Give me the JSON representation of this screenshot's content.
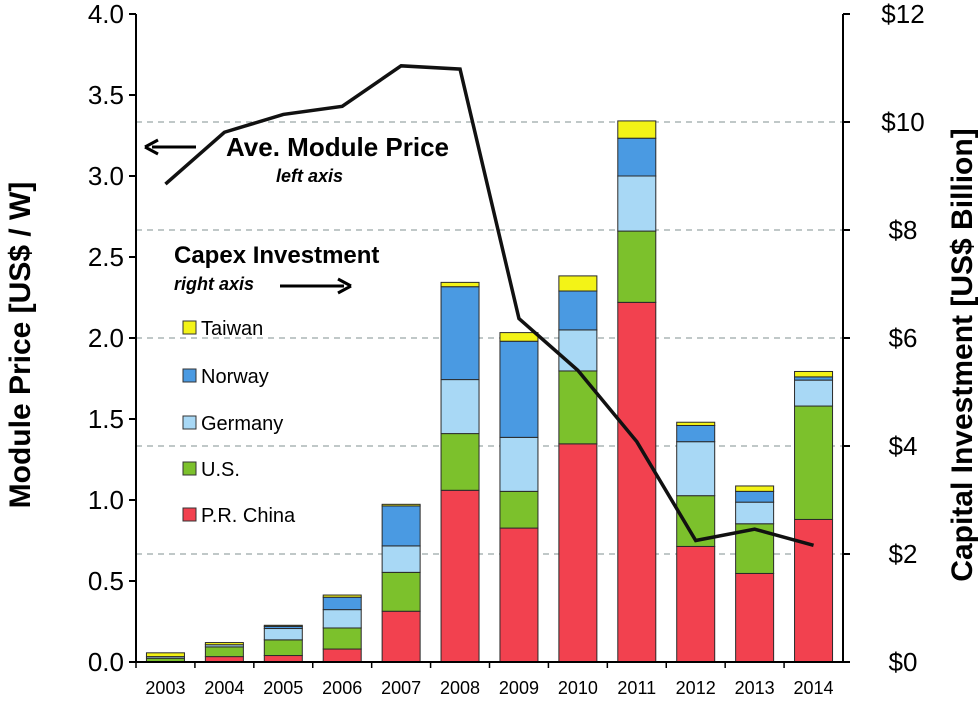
{
  "chart_data": {
    "type": "bar",
    "categories": [
      "2003",
      "2004",
      "2005",
      "2006",
      "2007",
      "2008",
      "2009",
      "2010",
      "2011",
      "2012",
      "2013",
      "2014"
    ],
    "series": [
      {
        "name": "P.R. China",
        "color": "#f2414f",
        "values": [
          0.0,
          0.1,
          0.12,
          0.24,
          0.94,
          3.18,
          2.48,
          4.04,
          6.66,
          2.14,
          1.64,
          2.64
        ]
      },
      {
        "name": "U.S.",
        "color": "#7cc12c",
        "values": [
          0.07,
          0.18,
          0.29,
          0.39,
          0.72,
          1.05,
          0.68,
          1.35,
          1.32,
          0.94,
          0.92,
          2.1
        ]
      },
      {
        "name": "Germany",
        "color": "#a8d8f5",
        "values": [
          0.03,
          0.04,
          0.21,
          0.34,
          0.49,
          1.0,
          1.0,
          0.76,
          1.02,
          1.0,
          0.4,
          0.48
        ]
      },
      {
        "name": "Norway",
        "color": "#4a9ae2",
        "values": [
          0.0,
          0.0,
          0.04,
          0.23,
          0.74,
          1.72,
          1.78,
          0.72,
          0.7,
          0.3,
          0.2,
          0.06
        ]
      },
      {
        "name": "Taiwan",
        "color": "#f3f317",
        "values": [
          0.07,
          0.04,
          0.02,
          0.04,
          0.03,
          0.08,
          0.16,
          0.28,
          0.32,
          0.06,
          0.1,
          0.1
        ]
      }
    ],
    "line": {
      "name": "Ave. Module Price",
      "axis": "left",
      "values": [
        2.95,
        3.27,
        3.38,
        3.43,
        3.68,
        3.66,
        2.12,
        1.8,
        1.36,
        0.75,
        0.82,
        0.72
      ]
    },
    "left_axis": {
      "label": "Module Price [US$ / W]",
      "min": 0,
      "max": 4,
      "ticks": [
        "0.0",
        "0.5",
        "1.0",
        "1.5",
        "2.0",
        "2.5",
        "3.0",
        "3.5",
        "4.0"
      ]
    },
    "right_axis": {
      "label": "Capital Investment [US$ Billion]",
      "min": 0,
      "max": 12,
      "ticks": [
        "$0",
        "$2",
        "$4",
        "$6",
        "$8",
        "$10",
        "$12"
      ]
    },
    "annotations": {
      "line_title": "Ave. Module Price",
      "line_sub": "left axis",
      "bar_title": "Capex Investment",
      "bar_sub": "right axis"
    },
    "legend": [
      "Taiwan",
      "Norway",
      "Germany",
      "U.S.",
      "P.R. China"
    ]
  }
}
